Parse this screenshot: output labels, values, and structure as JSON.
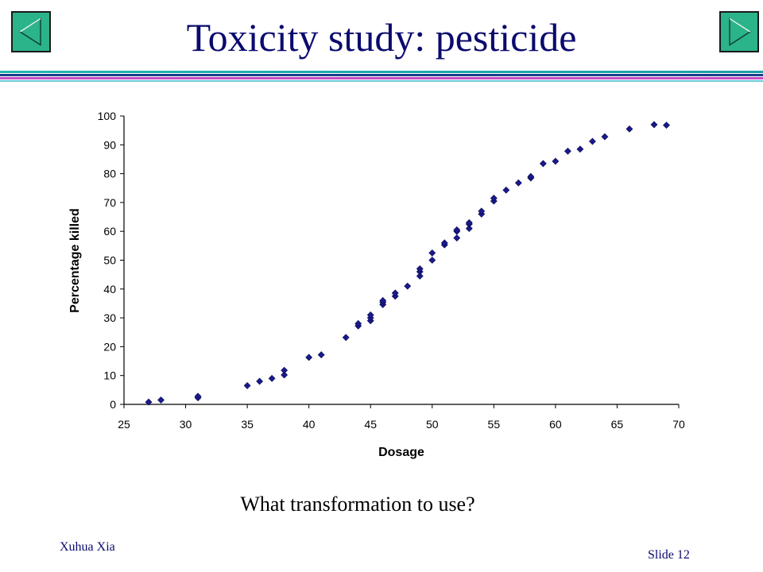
{
  "slide": {
    "title": "Toxicity study: pesticide",
    "caption": "What transformation to use?",
    "author": "Xuhua Xia",
    "slide_number": "Slide 12"
  },
  "navigation": {
    "prev_icon": "triangle-left-icon",
    "next_icon": "triangle-right-icon",
    "button_color": "#2bb38a"
  },
  "colors": {
    "title": "#0a0a6e",
    "marker": "#1a1a8c"
  },
  "chart_data": {
    "type": "scatter",
    "xlabel": "Dosage",
    "ylabel": "Percentage killed",
    "xlim": [
      25,
      70
    ],
    "ylim": [
      0,
      100
    ],
    "xticks": [
      25,
      30,
      35,
      40,
      45,
      50,
      55,
      60,
      65,
      70
    ],
    "yticks": [
      0,
      10,
      20,
      30,
      40,
      50,
      60,
      70,
      80,
      90,
      100
    ],
    "grid": false,
    "legend": "none",
    "marker": "diamond",
    "points": [
      [
        27,
        0.8
      ],
      [
        28,
        1.5
      ],
      [
        31,
        2.3
      ],
      [
        31,
        2.8
      ],
      [
        35,
        6.5
      ],
      [
        36,
        8.0
      ],
      [
        37,
        9.0
      ],
      [
        38,
        10.2
      ],
      [
        38,
        11.8
      ],
      [
        40,
        16.3
      ],
      [
        41,
        17.2
      ],
      [
        43,
        23.2
      ],
      [
        44,
        27.2
      ],
      [
        44,
        28.0
      ],
      [
        45,
        29.0
      ],
      [
        45,
        30.0
      ],
      [
        45,
        31.0
      ],
      [
        46,
        34.6
      ],
      [
        46,
        35.4
      ],
      [
        46,
        36.0
      ],
      [
        47,
        37.5
      ],
      [
        47,
        38.6
      ],
      [
        48,
        41.0
      ],
      [
        49,
        44.5
      ],
      [
        49,
        46.0
      ],
      [
        49,
        47.0
      ],
      [
        50,
        50.0
      ],
      [
        50,
        52.5
      ],
      [
        51,
        55.3
      ],
      [
        51,
        56.0
      ],
      [
        52,
        57.7
      ],
      [
        52,
        60.0
      ],
      [
        52,
        60.5
      ],
      [
        53,
        61.0
      ],
      [
        53,
        62.5
      ],
      [
        53,
        63.0
      ],
      [
        54,
        66.0
      ],
      [
        54,
        67.0
      ],
      [
        55,
        70.5
      ],
      [
        55,
        71.5
      ],
      [
        56,
        74.3
      ],
      [
        57,
        76.8
      ],
      [
        58,
        78.5
      ],
      [
        58,
        79.0
      ],
      [
        59,
        83.5
      ],
      [
        60,
        84.3
      ],
      [
        61,
        87.8
      ],
      [
        62,
        88.5
      ],
      [
        63,
        91.2
      ],
      [
        64,
        92.8
      ],
      [
        66,
        95.5
      ],
      [
        68,
        97.0
      ],
      [
        69,
        96.8
      ]
    ]
  }
}
